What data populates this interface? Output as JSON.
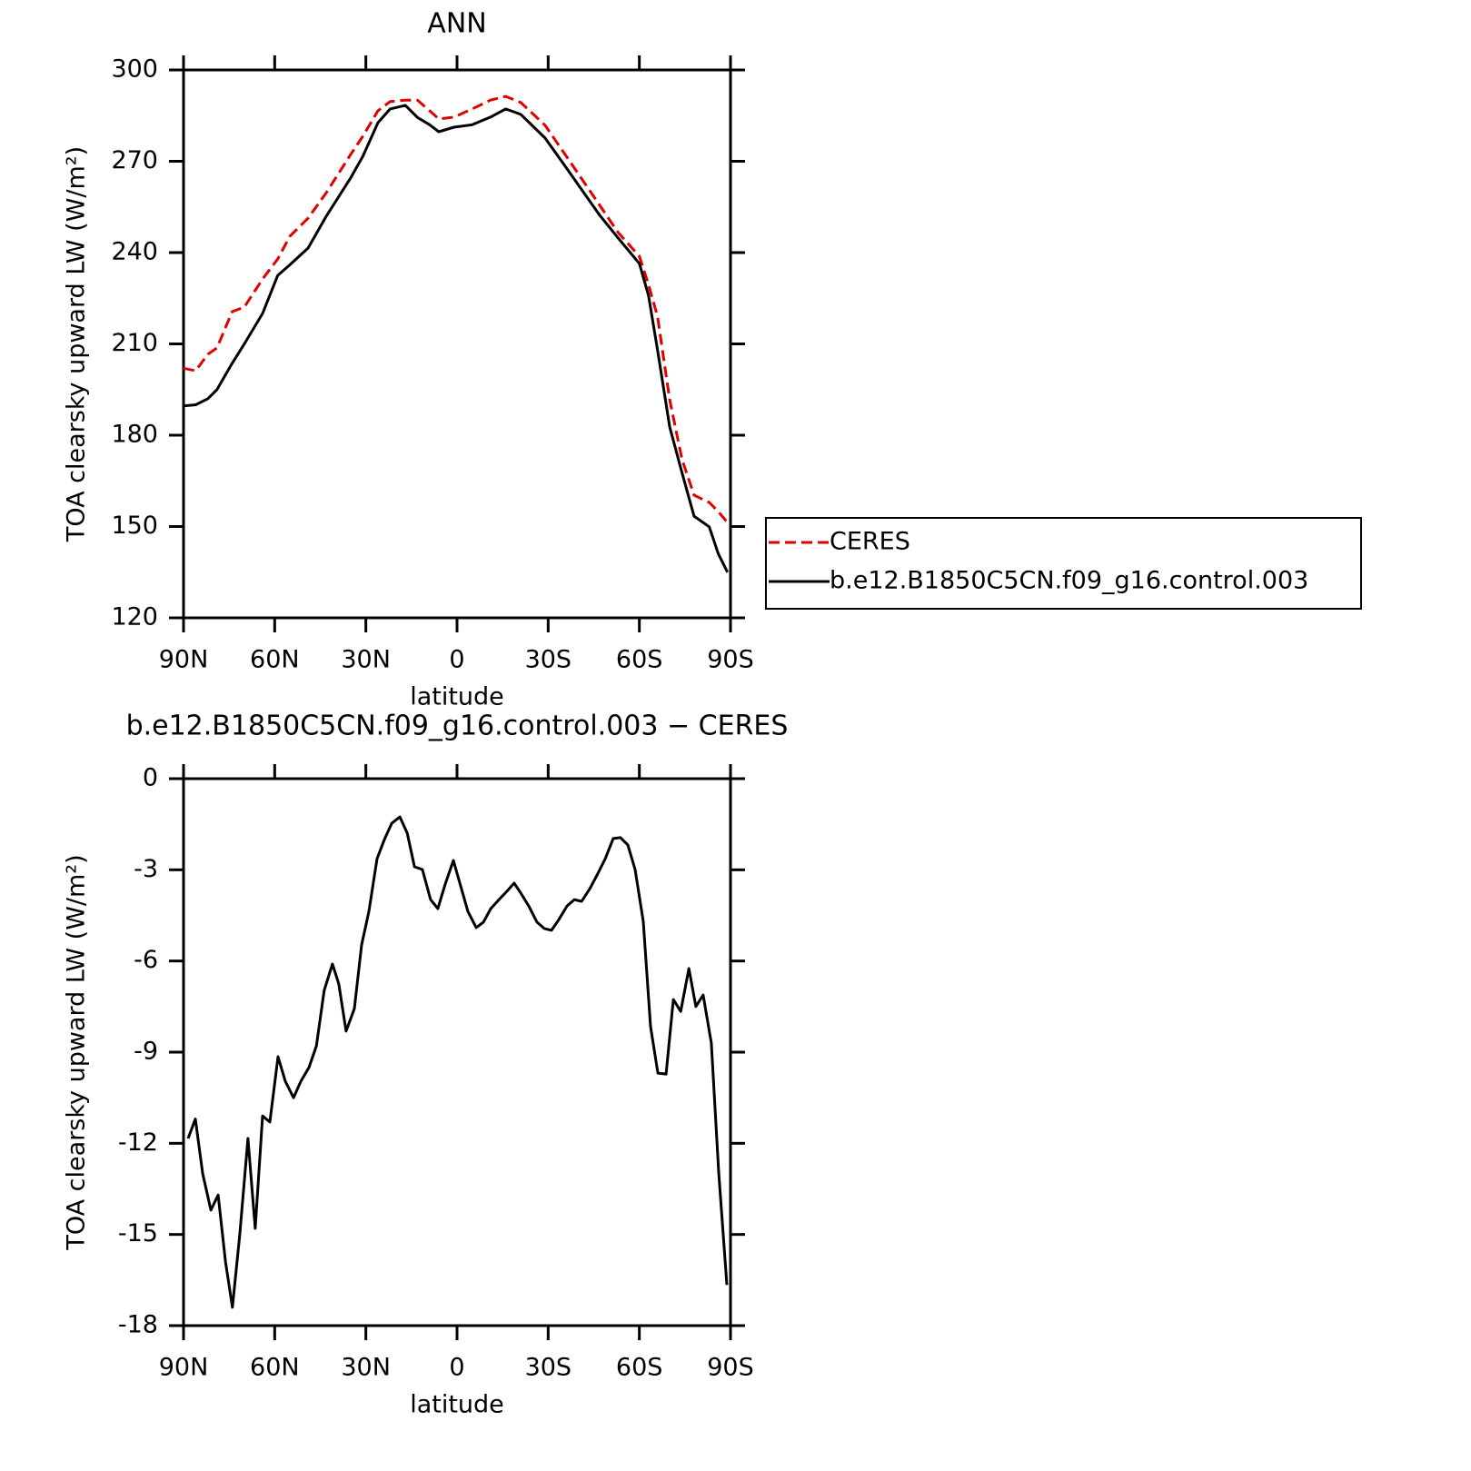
{
  "chart_data": [
    {
      "type": "line",
      "title": "ANN",
      "xlabel": "latitude",
      "ylabel": "TOA clearsky upward LW (W/m²)",
      "xlim": [
        90,
        -90
      ],
      "ylim": [
        120,
        300
      ],
      "xticks": [
        {
          "value": 90,
          "label": "90N"
        },
        {
          "value": 60,
          "label": "60N"
        },
        {
          "value": 30,
          "label": "30N"
        },
        0,
        {
          "value": -30,
          "label": "30S"
        },
        {
          "value": -60,
          "label": "60S"
        },
        {
          "value": -90,
          "label": "90S"
        }
      ],
      "yticks": [
        120,
        150,
        180,
        210,
        240,
        270,
        300
      ],
      "legend": "right",
      "x": [
        90,
        86,
        82,
        79,
        74,
        70,
        64,
        59,
        55,
        49,
        43,
        35,
        31,
        26,
        22,
        17,
        13,
        9,
        6,
        1,
        -5,
        -11,
        -16,
        -21,
        -29,
        -36,
        -47,
        -53,
        -60,
        -63,
        -66,
        -70,
        -74,
        -78,
        -83,
        -86,
        -89
      ],
      "series": [
        {
          "name": "CERES",
          "color": "#e00000",
          "dashed": true,
          "values": [
            202,
            201.2,
            206.6,
            208.7,
            220.6,
            222.1,
            231.3,
            237.9,
            245.4,
            251.3,
            259.7,
            272.2,
            278.2,
            286.6,
            289.6,
            290.1,
            290.1,
            286.6,
            283.9,
            284.5,
            287.2,
            290.1,
            291.3,
            289.3,
            281.8,
            271.6,
            255.5,
            246.6,
            238.8,
            229.5,
            219,
            191.6,
            172.2,
            160.3,
            157.9,
            154.9,
            151.3
          ]
        },
        {
          "name": "b.e12.B1850C5CN.f09_g16.control.003",
          "color": "#000000",
          "dashed": false,
          "values": [
            189.6,
            190,
            192,
            195,
            203.6,
            210,
            220,
            232.5,
            236,
            241.5,
            252,
            264.5,
            271.6,
            282.7,
            287.2,
            288.4,
            284.4,
            282,
            279.7,
            281.2,
            282,
            284.5,
            287.2,
            285.4,
            277.6,
            267.8,
            252.2,
            244.8,
            236.4,
            226,
            208,
            182.7,
            167.8,
            153.4,
            149.9,
            141,
            135
          ]
        }
      ]
    },
    {
      "type": "line",
      "title": "b.e12.B1850C5CN.f09_g16.control.003 − CERES",
      "xlabel": "latitude",
      "ylabel": "TOA clearsky upward LW (W/m²)",
      "xlim": [
        90,
        -90
      ],
      "ylim": [
        -18,
        0
      ],
      "xticks": [
        {
          "value": 90,
          "label": "90N"
        },
        {
          "value": 60,
          "label": "60N"
        },
        {
          "value": 30,
          "label": "30N"
        },
        0,
        {
          "value": -30,
          "label": "30S"
        },
        {
          "value": -60,
          "label": "60S"
        },
        {
          "value": -90,
          "label": "90S"
        }
      ],
      "yticks": [
        -18,
        -15,
        -12,
        -9,
        -6,
        -3,
        0
      ],
      "x": [
        88.5,
        86.1,
        83.7,
        81,
        78.6,
        76.2,
        73.9,
        71.5,
        68.8,
        66.4,
        64,
        61.6,
        58.9,
        56.5,
        53.8,
        51.4,
        48.7,
        46.3,
        43.7,
        41,
        38.9,
        36.5,
        33.8,
        31.4,
        29,
        26.3,
        23.9,
        21.5,
        18.8,
        16.4,
        14,
        11.4,
        8.7,
        6.3,
        3.9,
        1.2,
        -1.2,
        -3.6,
        -6.3,
        -8.7,
        -11.1,
        -13.8,
        -16.1,
        -18.8,
        -21.2,
        -23.6,
        -26.3,
        -28.7,
        -31.1,
        -33.5,
        -36.2,
        -38.6,
        -41,
        -43.7,
        -46.1,
        -48.8,
        -51.4,
        -53.8,
        -56.2,
        -58.6,
        -61.3,
        -63.7,
        -66.1,
        -68.8,
        -71.2,
        -73.6,
        -76.3,
        -78.6,
        -81,
        -83.7,
        -86.1,
        -88.8
      ],
      "series": [
        {
          "color": "#000000",
          "dashed": false,
          "values": [
            -11.84,
            -11.2,
            -13,
            -14.2,
            -13.7,
            -15.9,
            -17.4,
            -15,
            -11.84,
            -14.8,
            -11.1,
            -11.3,
            -9.15,
            -9.96,
            -10.5,
            -9.96,
            -9.5,
            -8.8,
            -6.97,
            -6.1,
            -6.76,
            -8.31,
            -7.57,
            -5.47,
            -4.37,
            -2.63,
            -2,
            -1.47,
            -1.26,
            -1.79,
            -2.9,
            -2.99,
            -3.98,
            -4.28,
            -3.47,
            -2.69,
            -3.53,
            -4.37,
            -4.9,
            -4.72,
            -4.28,
            -3.98,
            -3.74,
            -3.44,
            -3.8,
            -4.19,
            -4.72,
            -4.93,
            -4.99,
            -4.64,
            -4.19,
            -3.98,
            -4.04,
            -3.62,
            -3.17,
            -2.63,
            -1.97,
            -1.94,
            -2.18,
            -2.99,
            -4.7,
            -8.16,
            -9.69,
            -9.72,
            -7.27,
            -7.66,
            -6.25,
            -7.5,
            -7.12,
            -8.7,
            -12.95,
            -16.66
          ]
        }
      ]
    }
  ]
}
